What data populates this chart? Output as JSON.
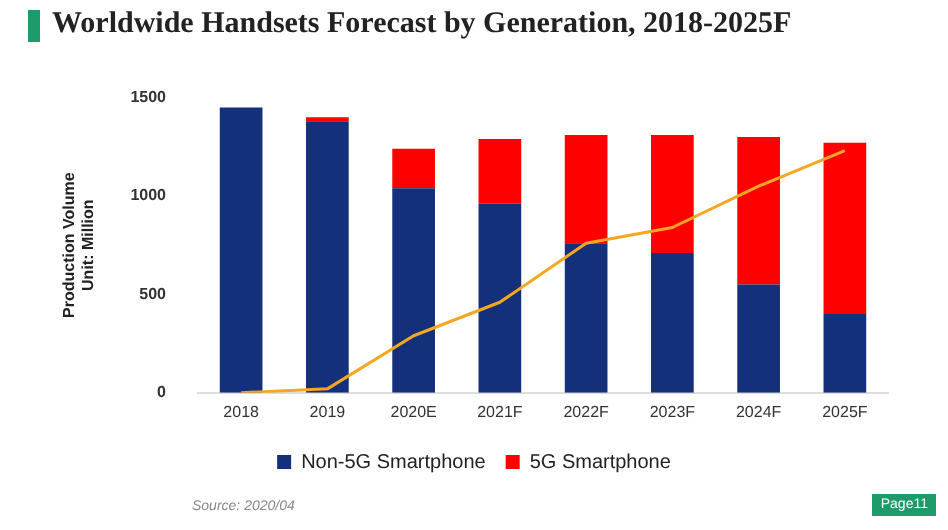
{
  "chart_data": {
    "type": "bar",
    "title": "Worldwide Handsets Forecast by Generation, 2018-2025F",
    "ylabel": "Production Volume\nUnit: Million",
    "categories": [
      "2018",
      "2019",
      "2020E",
      "2021F",
      "2022F",
      "2023F",
      "2024F",
      "2025F"
    ],
    "stacked": true,
    "series": [
      {
        "name": "Non-5G Smartphone",
        "color": "#14307a",
        "values": [
          1450,
          1380,
          1040,
          960,
          760,
          710,
          550,
          400
        ]
      },
      {
        "name": "5G Smartphone",
        "color": "#ff0000",
        "values": [
          0,
          20,
          200,
          330,
          550,
          600,
          750,
          870
        ]
      },
      {
        "type": "line",
        "color": "#f5a623",
        "values": [
          0,
          20,
          290,
          460,
          760,
          840,
          1050,
          1230
        ]
      }
    ],
    "ylim": [
      0,
      1500
    ],
    "yticks": [
      0,
      500,
      1000,
      1500
    ],
    "grid": false,
    "legend": "bottom",
    "marker": "none",
    "line_style": "solid",
    "annotations": [
      "Source: 2020/04",
      "Page11"
    ]
  }
}
